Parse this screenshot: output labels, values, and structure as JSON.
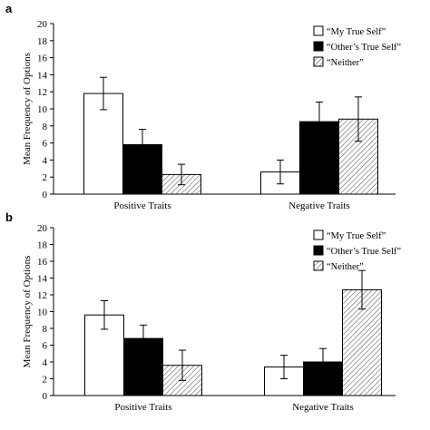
{
  "chart_data": [
    {
      "panel": "a",
      "type": "bar",
      "ylabel": "Mean Frequency of Options",
      "ylim": [
        0,
        20
      ],
      "yticks": [
        0,
        2,
        4,
        6,
        8,
        10,
        12,
        14,
        16,
        18,
        20
      ],
      "categories": [
        "Positive Traits",
        "Negative Traits"
      ],
      "legend_position": "top-right",
      "series": [
        {
          "name": "“My True Self”",
          "style": "white",
          "values": [
            11.8,
            2.6
          ],
          "errors": [
            1.9,
            1.4
          ]
        },
        {
          "name": "“Other’s True Self”",
          "style": "black",
          "values": [
            5.8,
            8.5
          ],
          "errors": [
            1.8,
            2.3
          ]
        },
        {
          "name": "“Neither”",
          "style": "hatched",
          "values": [
            2.3,
            8.8
          ],
          "errors": [
            1.2,
            2.6
          ]
        }
      ]
    },
    {
      "panel": "b",
      "type": "bar",
      "ylabel": "Mean Frequency of Options",
      "ylim": [
        0,
        20
      ],
      "yticks": [
        0,
        2,
        4,
        6,
        8,
        10,
        12,
        14,
        16,
        18,
        20
      ],
      "categories": [
        "Positive Traits",
        "Negative Traits"
      ],
      "legend_position": "top-right",
      "series": [
        {
          "name": "“My True Self”",
          "style": "white",
          "values": [
            9.6,
            3.4
          ],
          "errors": [
            1.7,
            1.4
          ]
        },
        {
          "name": "“Other’s True Self”",
          "style": "black",
          "values": [
            6.8,
            4.0
          ],
          "errors": [
            1.6,
            1.6
          ]
        },
        {
          "name": "“Neither”",
          "style": "hatched",
          "values": [
            3.6,
            12.6
          ],
          "errors": [
            1.8,
            2.3
          ]
        }
      ]
    }
  ]
}
